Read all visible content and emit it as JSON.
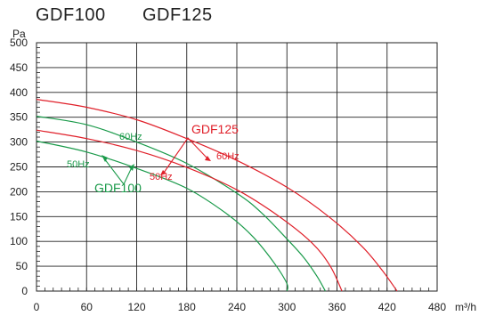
{
  "titles": [
    "GDF100",
    "GDF125"
  ],
  "chart_data": {
    "type": "line",
    "xlabel": "m³/h",
    "ylabel": "Pa",
    "xlim": [
      0,
      480
    ],
    "ylim": [
      0,
      500
    ],
    "x_ticks": [
      0,
      60,
      120,
      180,
      240,
      300,
      360,
      420,
      480
    ],
    "y_ticks": [
      0,
      50,
      100,
      150,
      200,
      250,
      300,
      350,
      400,
      450,
      500
    ],
    "grid": true,
    "colors": {
      "GDF100": "#1a9a4a",
      "GDF125": "#e0202a"
    },
    "series": [
      {
        "model": "GDF100",
        "freq": "60Hz",
        "x": [
          0,
          60,
          120,
          180,
          240,
          270,
          300,
          320,
          336,
          346
        ],
        "y": [
          352,
          335,
          300,
          257,
          197,
          157,
          105,
          68,
          30,
          0
        ]
      },
      {
        "model": "GDF100",
        "freq": "50Hz",
        "x": [
          0,
          60,
          120,
          180,
          230,
          260,
          285,
          300,
          300
        ],
        "y": [
          302,
          280,
          247,
          207,
          153,
          108,
          56,
          15,
          0
        ]
      },
      {
        "model": "GDF125",
        "freq": "60Hz",
        "x": [
          0,
          60,
          120,
          180,
          240,
          300,
          350,
          390,
          415,
          432
        ],
        "y": [
          386,
          370,
          345,
          307,
          263,
          209,
          150,
          90,
          40,
          0
        ]
      },
      {
        "model": "GDF125",
        "freq": "50Hz",
        "x": [
          0,
          60,
          120,
          180,
          240,
          290,
          330,
          352,
          366
        ],
        "y": [
          324,
          307,
          283,
          249,
          204,
          151,
          97,
          50,
          0
        ]
      }
    ],
    "annotations": [
      {
        "text": "60Hz",
        "color": "#1a9a4a"
      },
      {
        "text": "50Hz",
        "color": "#1a9a4a"
      },
      {
        "text": "GDF100",
        "color": "#1a9a4a"
      },
      {
        "text": "GDF125",
        "color": "#e0202a"
      },
      {
        "text": "60Hz",
        "color": "#e0202a"
      },
      {
        "text": "50Hz",
        "color": "#e0202a"
      }
    ]
  }
}
